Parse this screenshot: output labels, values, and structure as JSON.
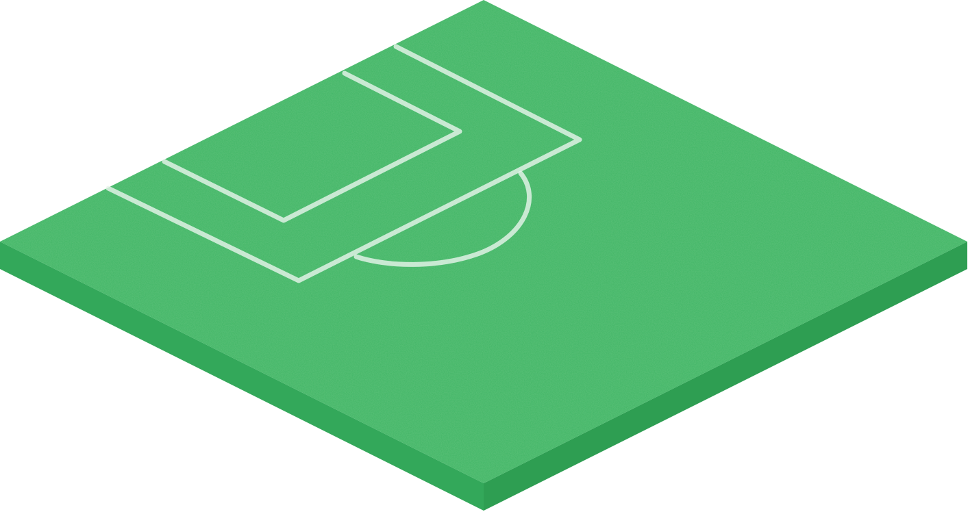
{
  "scene": {
    "subject": "isometric-soccer-pitch-tile",
    "colors": {
      "background": "#ffffff",
      "turf_top": "#3fb565",
      "turf_top_light": "#4cc170",
      "turf_side_left": "#33a85a",
      "turf_side_right": "#2e9e52",
      "line": "#e9f5ec"
    },
    "markings": [
      "penalty-area",
      "goal-area",
      "penalty-arc"
    ]
  }
}
